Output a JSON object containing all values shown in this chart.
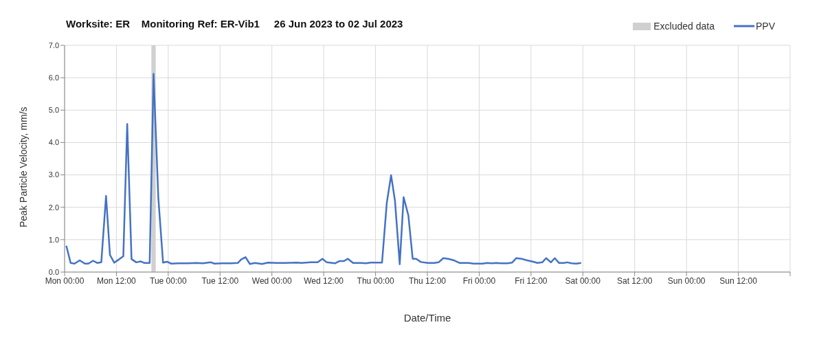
{
  "chart_data": {
    "type": "line",
    "title": "Worksite: ER    Monitoring Ref: ER-Vib1     26 Jun 2023 to 02 Jul 2023",
    "xlabel": "Date/Time",
    "ylabel": "Peak Particle Velocity, mm/s",
    "xlim": [
      "2023-06-26T00:00",
      "2023-07-03T00:00"
    ],
    "xticks": [
      {
        "value": "2023-06-26T00:00",
        "label": "Mon 00:00"
      },
      {
        "value": "2023-06-26T12:00",
        "label": "Mon 12:00"
      },
      {
        "value": "2023-06-27T00:00",
        "label": "Tue 00:00"
      },
      {
        "value": "2023-06-27T12:00",
        "label": "Tue 12:00"
      },
      {
        "value": "2023-06-28T00:00",
        "label": "Wed 00:00"
      },
      {
        "value": "2023-06-28T12:00",
        "label": "Wed 12:00"
      },
      {
        "value": "2023-06-29T00:00",
        "label": "Thu 00:00"
      },
      {
        "value": "2023-06-29T12:00",
        "label": "Thu 12:00"
      },
      {
        "value": "2023-06-30T00:00",
        "label": "Fri 00:00"
      },
      {
        "value": "2023-06-30T12:00",
        "label": "Fri 12:00"
      },
      {
        "value": "2023-07-01T00:00",
        "label": "Sat 00:00"
      },
      {
        "value": "2023-07-01T12:00",
        "label": "Sat 12:00"
      },
      {
        "value": "2023-07-02T00:00",
        "label": "Sun 00:00"
      },
      {
        "value": "2023-07-02T12:00",
        "label": "Sun 12:00"
      },
      {
        "value": "2023-07-03T00:00",
        "label": null
      }
    ],
    "ylim": [
      0,
      7
    ],
    "yticks": [
      {
        "value": 0,
        "label": "0.0"
      },
      {
        "value": 1,
        "label": "1.0"
      },
      {
        "value": 2,
        "label": "2.0"
      },
      {
        "value": 3,
        "label": "3.0"
      },
      {
        "value": 4,
        "label": "4.0"
      },
      {
        "value": 5,
        "label": "5.0"
      },
      {
        "value": 6,
        "label": "6.0"
      },
      {
        "value": 7,
        "label": "7.0"
      }
    ],
    "grid": true,
    "legend": "top right",
    "marker": "none",
    "line_style": "solid",
    "bands": [
      {
        "axis": "x",
        "from": "2023-06-26T20:06",
        "to": "2023-06-26T21:06",
        "label": "Excluded data",
        "color": "#d0d0d0"
      }
    ],
    "series": [
      {
        "name": "PPV",
        "color": "#4472c4",
        "x": [
          "2023-06-26T00:24",
          "2023-06-26T01:24",
          "2023-06-26T02:18",
          "2023-06-26T03:30",
          "2023-06-26T04:42",
          "2023-06-26T05:30",
          "2023-06-26T06:36",
          "2023-06-26T07:36",
          "2023-06-26T08:30",
          "2023-06-26T09:36",
          "2023-06-26T10:30",
          "2023-06-26T11:30",
          "2023-06-26T12:36",
          "2023-06-26T13:36",
          "2023-06-26T14:30",
          "2023-06-26T15:30",
          "2023-06-26T16:36",
          "2023-06-26T17:36",
          "2023-06-26T18:30",
          "2023-06-26T19:42",
          "2023-06-26T20:36",
          "2023-06-26T21:42",
          "2023-06-26T22:48",
          "2023-06-26T23:42",
          "2023-06-27T00:42",
          "2023-06-27T02:30",
          "2023-06-27T04:30",
          "2023-06-27T06:30",
          "2023-06-27T08:00",
          "2023-06-27T09:54",
          "2023-06-27T10:42",
          "2023-06-27T12:30",
          "2023-06-27T14:30",
          "2023-06-27T16:06",
          "2023-06-27T16:54",
          "2023-06-27T17:54",
          "2023-06-27T18:54",
          "2023-06-27T20:06",
          "2023-06-27T21:42",
          "2023-06-27T23:06",
          "2023-06-28T01:00",
          "2023-06-28T03:00",
          "2023-06-28T05:48",
          "2023-06-28T06:54",
          "2023-06-28T09:00",
          "2023-06-28T10:36",
          "2023-06-28T11:42",
          "2023-06-28T12:42",
          "2023-06-28T14:36",
          "2023-06-28T15:42",
          "2023-06-28T16:42",
          "2023-06-28T17:36",
          "2023-06-28T18:48",
          "2023-06-28T20:42",
          "2023-06-28T21:48",
          "2023-06-28T22:48",
          "2023-06-29T01:30",
          "2023-06-29T02:36",
          "2023-06-29T03:36",
          "2023-06-29T04:30",
          "2023-06-29T05:36",
          "2023-06-29T06:30",
          "2023-06-29T07:36",
          "2023-06-29T08:36",
          "2023-06-29T09:24",
          "2023-06-29T10:30",
          "2023-06-29T12:06",
          "2023-06-29T13:36",
          "2023-06-29T14:36",
          "2023-06-29T15:42",
          "2023-06-29T16:48",
          "2023-06-29T18:12",
          "2023-06-29T19:30",
          "2023-06-29T21:36",
          "2023-06-29T22:42",
          "2023-06-30T00:48",
          "2023-06-30T01:48",
          "2023-06-30T02:54",
          "2023-06-30T04:00",
          "2023-06-30T05:00",
          "2023-06-30T06:36",
          "2023-06-30T07:36",
          "2023-06-30T08:36",
          "2023-06-30T09:48",
          "2023-06-30T11:06",
          "2023-06-30T12:12",
          "2023-06-30T13:30",
          "2023-06-30T14:36",
          "2023-06-30T15:30",
          "2023-06-30T16:36",
          "2023-06-30T17:30",
          "2023-06-30T18:30",
          "2023-06-30T19:36",
          "2023-06-30T20:24",
          "2023-06-30T21:24",
          "2023-06-30T22:30",
          "2023-06-30T23:36"
        ],
        "values": [
          0.81,
          0.28,
          0.26,
          0.36,
          0.26,
          0.26,
          0.35,
          0.28,
          0.3,
          2.35,
          0.53,
          0.29,
          0.39,
          0.49,
          4.57,
          0.4,
          0.3,
          0.33,
          0.28,
          0.28,
          6.12,
          2.3,
          0.29,
          0.32,
          0.26,
          0.27,
          0.27,
          0.28,
          0.27,
          0.3,
          0.26,
          0.27,
          0.27,
          0.28,
          0.39,
          0.46,
          0.25,
          0.28,
          0.25,
          0.29,
          0.28,
          0.28,
          0.29,
          0.28,
          0.3,
          0.3,
          0.41,
          0.3,
          0.27,
          0.34,
          0.34,
          0.41,
          0.28,
          0.28,
          0.27,
          0.29,
          0.29,
          2.13,
          2.99,
          2.2,
          0.24,
          2.31,
          1.75,
          0.41,
          0.41,
          0.31,
          0.28,
          0.28,
          0.3,
          0.43,
          0.41,
          0.36,
          0.28,
          0.28,
          0.26,
          0.26,
          0.28,
          0.27,
          0.28,
          0.27,
          0.27,
          0.29,
          0.43,
          0.41,
          0.36,
          0.33,
          0.28,
          0.3,
          0.43,
          0.3,
          0.43,
          0.28,
          0.28,
          0.3,
          0.27,
          0.26,
          0.28
        ]
      }
    ]
  }
}
